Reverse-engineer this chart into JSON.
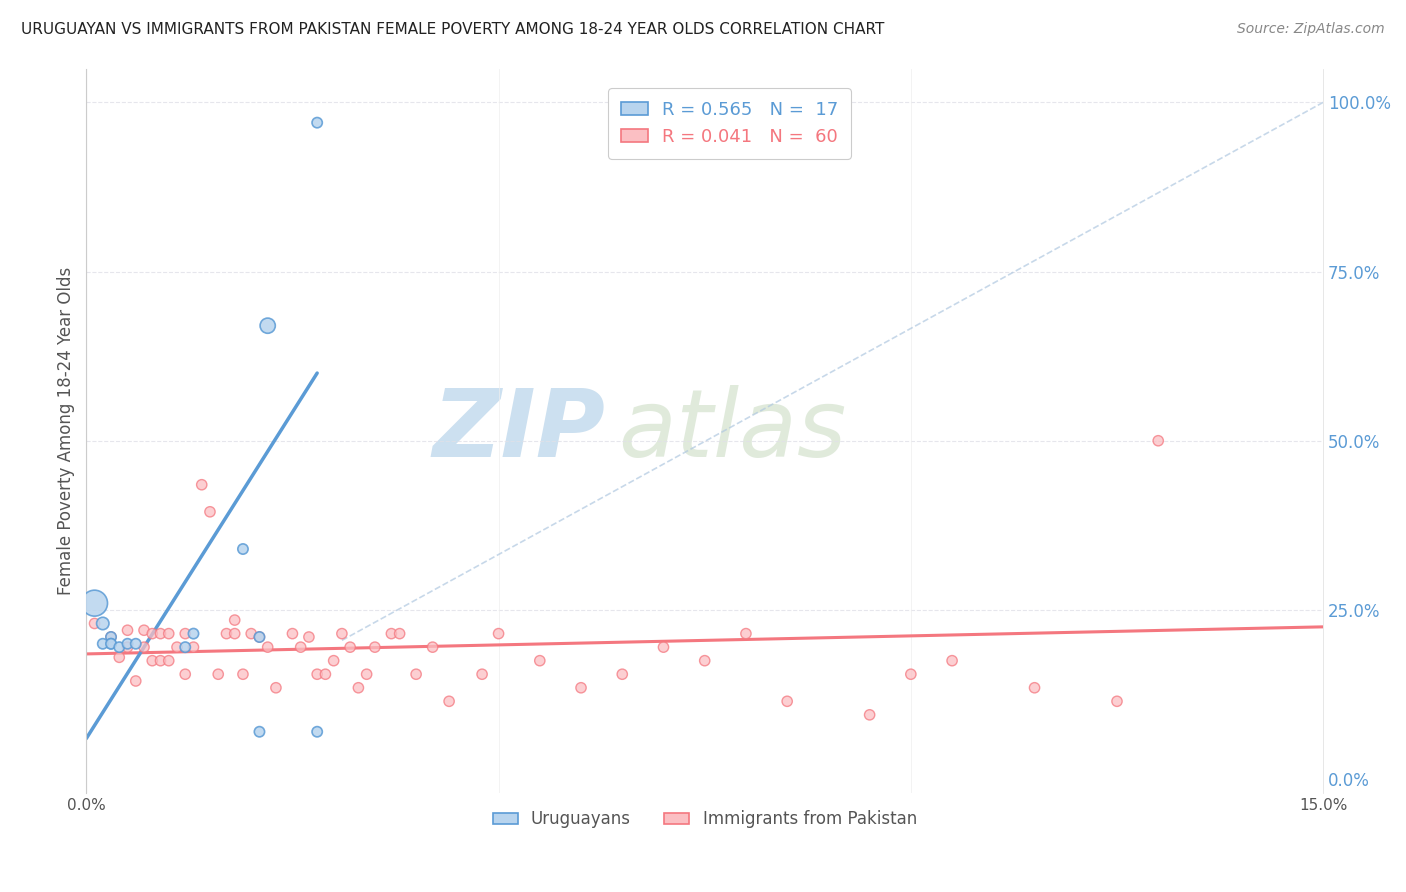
{
  "title": "URUGUAYAN VS IMMIGRANTS FROM PAKISTAN FEMALE POVERTY AMONG 18-24 YEAR OLDS CORRELATION CHART",
  "source": "Source: ZipAtlas.com",
  "ylabel_left": "Female Poverty Among 18-24 Year Olds",
  "x_min": 0.0,
  "x_max": 0.15,
  "y_min": -0.02,
  "y_max": 1.05,
  "legend1_text": "R = 0.565   N =  17",
  "legend2_text": "R = 0.041   N =  60",
  "legend1_color": "#5b9bd5",
  "legend2_color": "#f4777f",
  "watermark_zip": "ZIP",
  "watermark_atlas": "atlas",
  "watermark_color": "#cce0f0",
  "blue_scatter_x": [
    0.001,
    0.022,
    0.002,
    0.003,
    0.003,
    0.002,
    0.003,
    0.004,
    0.005,
    0.006,
    0.012,
    0.013,
    0.019,
    0.021,
    0.021,
    0.028,
    0.028
  ],
  "blue_scatter_y": [
    0.26,
    0.67,
    0.23,
    0.21,
    0.2,
    0.2,
    0.2,
    0.195,
    0.2,
    0.2,
    0.195,
    0.215,
    0.34,
    0.21,
    0.07,
    0.07,
    0.97
  ],
  "blue_scatter_sizes": [
    350,
    120,
    80,
    55,
    55,
    55,
    55,
    55,
    55,
    55,
    55,
    55,
    55,
    55,
    55,
    55,
    55
  ],
  "pink_scatter_x": [
    0.001,
    0.003,
    0.004,
    0.005,
    0.005,
    0.006,
    0.007,
    0.007,
    0.008,
    0.008,
    0.009,
    0.009,
    0.01,
    0.01,
    0.011,
    0.012,
    0.012,
    0.013,
    0.014,
    0.015,
    0.016,
    0.017,
    0.018,
    0.018,
    0.019,
    0.02,
    0.021,
    0.022,
    0.023,
    0.025,
    0.026,
    0.027,
    0.028,
    0.029,
    0.03,
    0.031,
    0.032,
    0.033,
    0.034,
    0.035,
    0.037,
    0.038,
    0.04,
    0.042,
    0.044,
    0.048,
    0.05,
    0.055,
    0.06,
    0.065,
    0.07,
    0.075,
    0.08,
    0.085,
    0.095,
    0.1,
    0.105,
    0.115,
    0.125,
    0.13
  ],
  "pink_scatter_y": [
    0.23,
    0.21,
    0.18,
    0.195,
    0.22,
    0.145,
    0.195,
    0.22,
    0.175,
    0.215,
    0.175,
    0.215,
    0.175,
    0.215,
    0.195,
    0.155,
    0.215,
    0.195,
    0.435,
    0.395,
    0.155,
    0.215,
    0.235,
    0.215,
    0.155,
    0.215,
    0.21,
    0.195,
    0.135,
    0.215,
    0.195,
    0.21,
    0.155,
    0.155,
    0.175,
    0.215,
    0.195,
    0.135,
    0.155,
    0.195,
    0.215,
    0.215,
    0.155,
    0.195,
    0.115,
    0.155,
    0.215,
    0.175,
    0.135,
    0.155,
    0.195,
    0.175,
    0.215,
    0.115,
    0.095,
    0.155,
    0.175,
    0.135,
    0.115,
    0.5
  ],
  "pink_scatter_sizes": [
    55,
    55,
    55,
    55,
    55,
    55,
    55,
    55,
    55,
    55,
    55,
    55,
    55,
    55,
    55,
    55,
    55,
    55,
    55,
    55,
    55,
    55,
    55,
    55,
    55,
    55,
    55,
    55,
    55,
    55,
    55,
    55,
    55,
    55,
    55,
    55,
    55,
    55,
    55,
    55,
    55,
    55,
    55,
    55,
    55,
    55,
    55,
    55,
    55,
    55,
    55,
    55,
    55,
    55,
    55,
    55,
    55,
    55,
    55,
    55
  ],
  "blue_line_x": [
    0.0,
    0.028
  ],
  "blue_line_y": [
    0.06,
    0.6
  ],
  "pink_line_x": [
    0.0,
    0.15
  ],
  "pink_line_y": [
    0.185,
    0.225
  ],
  "diag_line_x": [
    0.031,
    0.15
  ],
  "diag_line_y": [
    0.205,
    1.0
  ],
  "grid_color": "#e0e0e8",
  "bottom_legend_labels": [
    "Uruguayans",
    "Immigrants from Pakistan"
  ]
}
